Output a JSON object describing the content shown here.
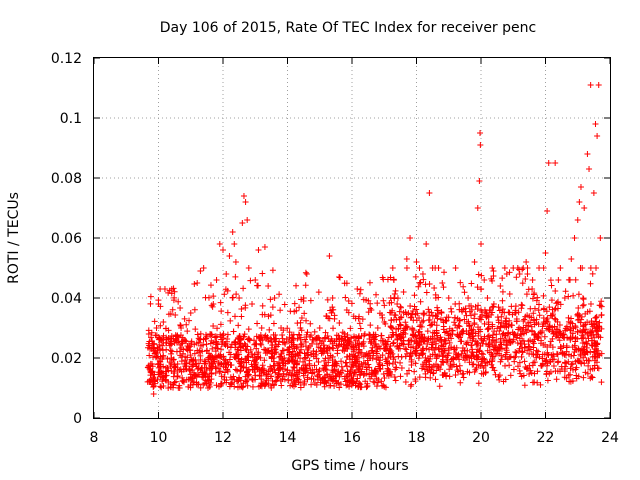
{
  "chart_data": {
    "type": "scatter",
    "title": "Day 106 of 2015, Rate Of TEC Index for receiver penc",
    "xlabel": "GPS time / hours",
    "ylabel": "ROTI / TECUs",
    "xlim": [
      8,
      24
    ],
    "ylim": [
      0,
      0.12
    ],
    "x_ticks": [
      8,
      10,
      12,
      14,
      16,
      18,
      20,
      22,
      24
    ],
    "x_tick_labels": [
      "8",
      "10",
      "12",
      "14",
      "16",
      "18",
      "20",
      "22",
      "24"
    ],
    "y_ticks": [
      0,
      0.02,
      0.04,
      0.06,
      0.08,
      0.1,
      0.12
    ],
    "y_tick_labels": [
      "0",
      "0.02",
      "0.04",
      "0.06",
      "0.08",
      "0.1",
      "0.12"
    ],
    "grid": true,
    "marker": "+",
    "color": "#ff0000",
    "series": [
      {
        "name": "ROTI",
        "points": [
          [
            9.7,
            0.028
          ],
          [
            9.75,
            0.012
          ],
          [
            9.8,
            0.018
          ],
          [
            9.85,
            0.008
          ],
          [
            9.9,
            0.022
          ],
          [
            10.0,
            0.038
          ],
          [
            10.05,
            0.043
          ],
          [
            10.1,
            0.015
          ],
          [
            10.15,
            0.032
          ],
          [
            10.2,
            0.043
          ],
          [
            10.3,
            0.01
          ],
          [
            10.4,
            0.02
          ],
          [
            10.5,
            0.025
          ],
          [
            10.6,
            0.014
          ],
          [
            10.7,
            0.03
          ],
          [
            10.8,
            0.018
          ],
          [
            10.9,
            0.024
          ],
          [
            11.0,
            0.035
          ],
          [
            11.1,
            0.012
          ],
          [
            11.2,
            0.045
          ],
          [
            11.3,
            0.049
          ],
          [
            11.4,
            0.05
          ],
          [
            11.5,
            0.016
          ],
          [
            11.6,
            0.028
          ],
          [
            11.7,
            0.038
          ],
          [
            11.8,
            0.046
          ],
          [
            11.9,
            0.058
          ],
          [
            12.0,
            0.056
          ],
          [
            12.1,
            0.048
          ],
          [
            12.2,
            0.054
          ],
          [
            12.3,
            0.062
          ],
          [
            12.35,
            0.058
          ],
          [
            12.4,
            0.052
          ],
          [
            12.5,
            0.04
          ],
          [
            12.6,
            0.065
          ],
          [
            12.65,
            0.074
          ],
          [
            12.7,
            0.072
          ],
          [
            12.75,
            0.066
          ],
          [
            12.8,
            0.05
          ],
          [
            12.9,
            0.038
          ],
          [
            13.0,
            0.046
          ],
          [
            13.1,
            0.056
          ],
          [
            13.2,
            0.03
          ],
          [
            13.3,
            0.057
          ],
          [
            13.4,
            0.044
          ],
          [
            13.5,
            0.026
          ],
          [
            13.6,
            0.04
          ],
          [
            13.7,
            0.018
          ],
          [
            13.8,
            0.03
          ],
          [
            13.9,
            0.02
          ],
          [
            14.0,
            0.016
          ],
          [
            14.2,
            0.024
          ],
          [
            14.4,
            0.03
          ],
          [
            14.5,
            0.04
          ],
          [
            14.6,
            0.048
          ],
          [
            14.8,
            0.026
          ],
          [
            15.0,
            0.03
          ],
          [
            15.2,
            0.034
          ],
          [
            15.3,
            0.054
          ],
          [
            15.4,
            0.04
          ],
          [
            15.6,
            0.047
          ],
          [
            15.8,
            0.026
          ],
          [
            16.0,
            0.018
          ],
          [
            16.2,
            0.024
          ],
          [
            16.4,
            0.028
          ],
          [
            16.6,
            0.036
          ],
          [
            16.8,
            0.03
          ],
          [
            17.0,
            0.032
          ],
          [
            17.2,
            0.04
          ],
          [
            17.3,
            0.046
          ],
          [
            17.4,
            0.038
          ],
          [
            17.6,
            0.042
          ],
          [
            17.7,
            0.053
          ],
          [
            17.8,
            0.06
          ],
          [
            18.0,
            0.052
          ],
          [
            18.1,
            0.045
          ],
          [
            18.2,
            0.048
          ],
          [
            18.3,
            0.058
          ],
          [
            18.4,
            0.075
          ],
          [
            18.5,
            0.05
          ],
          [
            18.6,
            0.04
          ],
          [
            18.8,
            0.045
          ],
          [
            19.0,
            0.04
          ],
          [
            19.2,
            0.038
          ],
          [
            19.4,
            0.036
          ],
          [
            19.6,
            0.04
          ],
          [
            19.8,
            0.052
          ],
          [
            19.9,
            0.07
          ],
          [
            19.95,
            0.079
          ],
          [
            19.97,
            0.095
          ],
          [
            19.98,
            0.091
          ],
          [
            20.0,
            0.058
          ],
          [
            20.1,
            0.046
          ],
          [
            20.2,
            0.04
          ],
          [
            20.4,
            0.038
          ],
          [
            20.6,
            0.044
          ],
          [
            20.8,
            0.048
          ],
          [
            21.0,
            0.05
          ],
          [
            21.2,
            0.048
          ],
          [
            21.4,
            0.052
          ],
          [
            21.6,
            0.046
          ],
          [
            21.8,
            0.05
          ],
          [
            22.0,
            0.055
          ],
          [
            22.05,
            0.069
          ],
          [
            22.1,
            0.085
          ],
          [
            22.3,
            0.085
          ],
          [
            22.4,
            0.046
          ],
          [
            22.6,
            0.04
          ],
          [
            22.8,
            0.053
          ],
          [
            22.9,
            0.06
          ],
          [
            23.0,
            0.066
          ],
          [
            23.05,
            0.072
          ],
          [
            23.1,
            0.077
          ],
          [
            23.2,
            0.07
          ],
          [
            23.3,
            0.088
          ],
          [
            23.35,
            0.083
          ],
          [
            23.4,
            0.111
          ],
          [
            23.5,
            0.075
          ],
          [
            23.55,
            0.098
          ],
          [
            23.6,
            0.094
          ],
          [
            23.65,
            0.111
          ],
          [
            23.7,
            0.06
          ]
        ]
      }
    ]
  }
}
